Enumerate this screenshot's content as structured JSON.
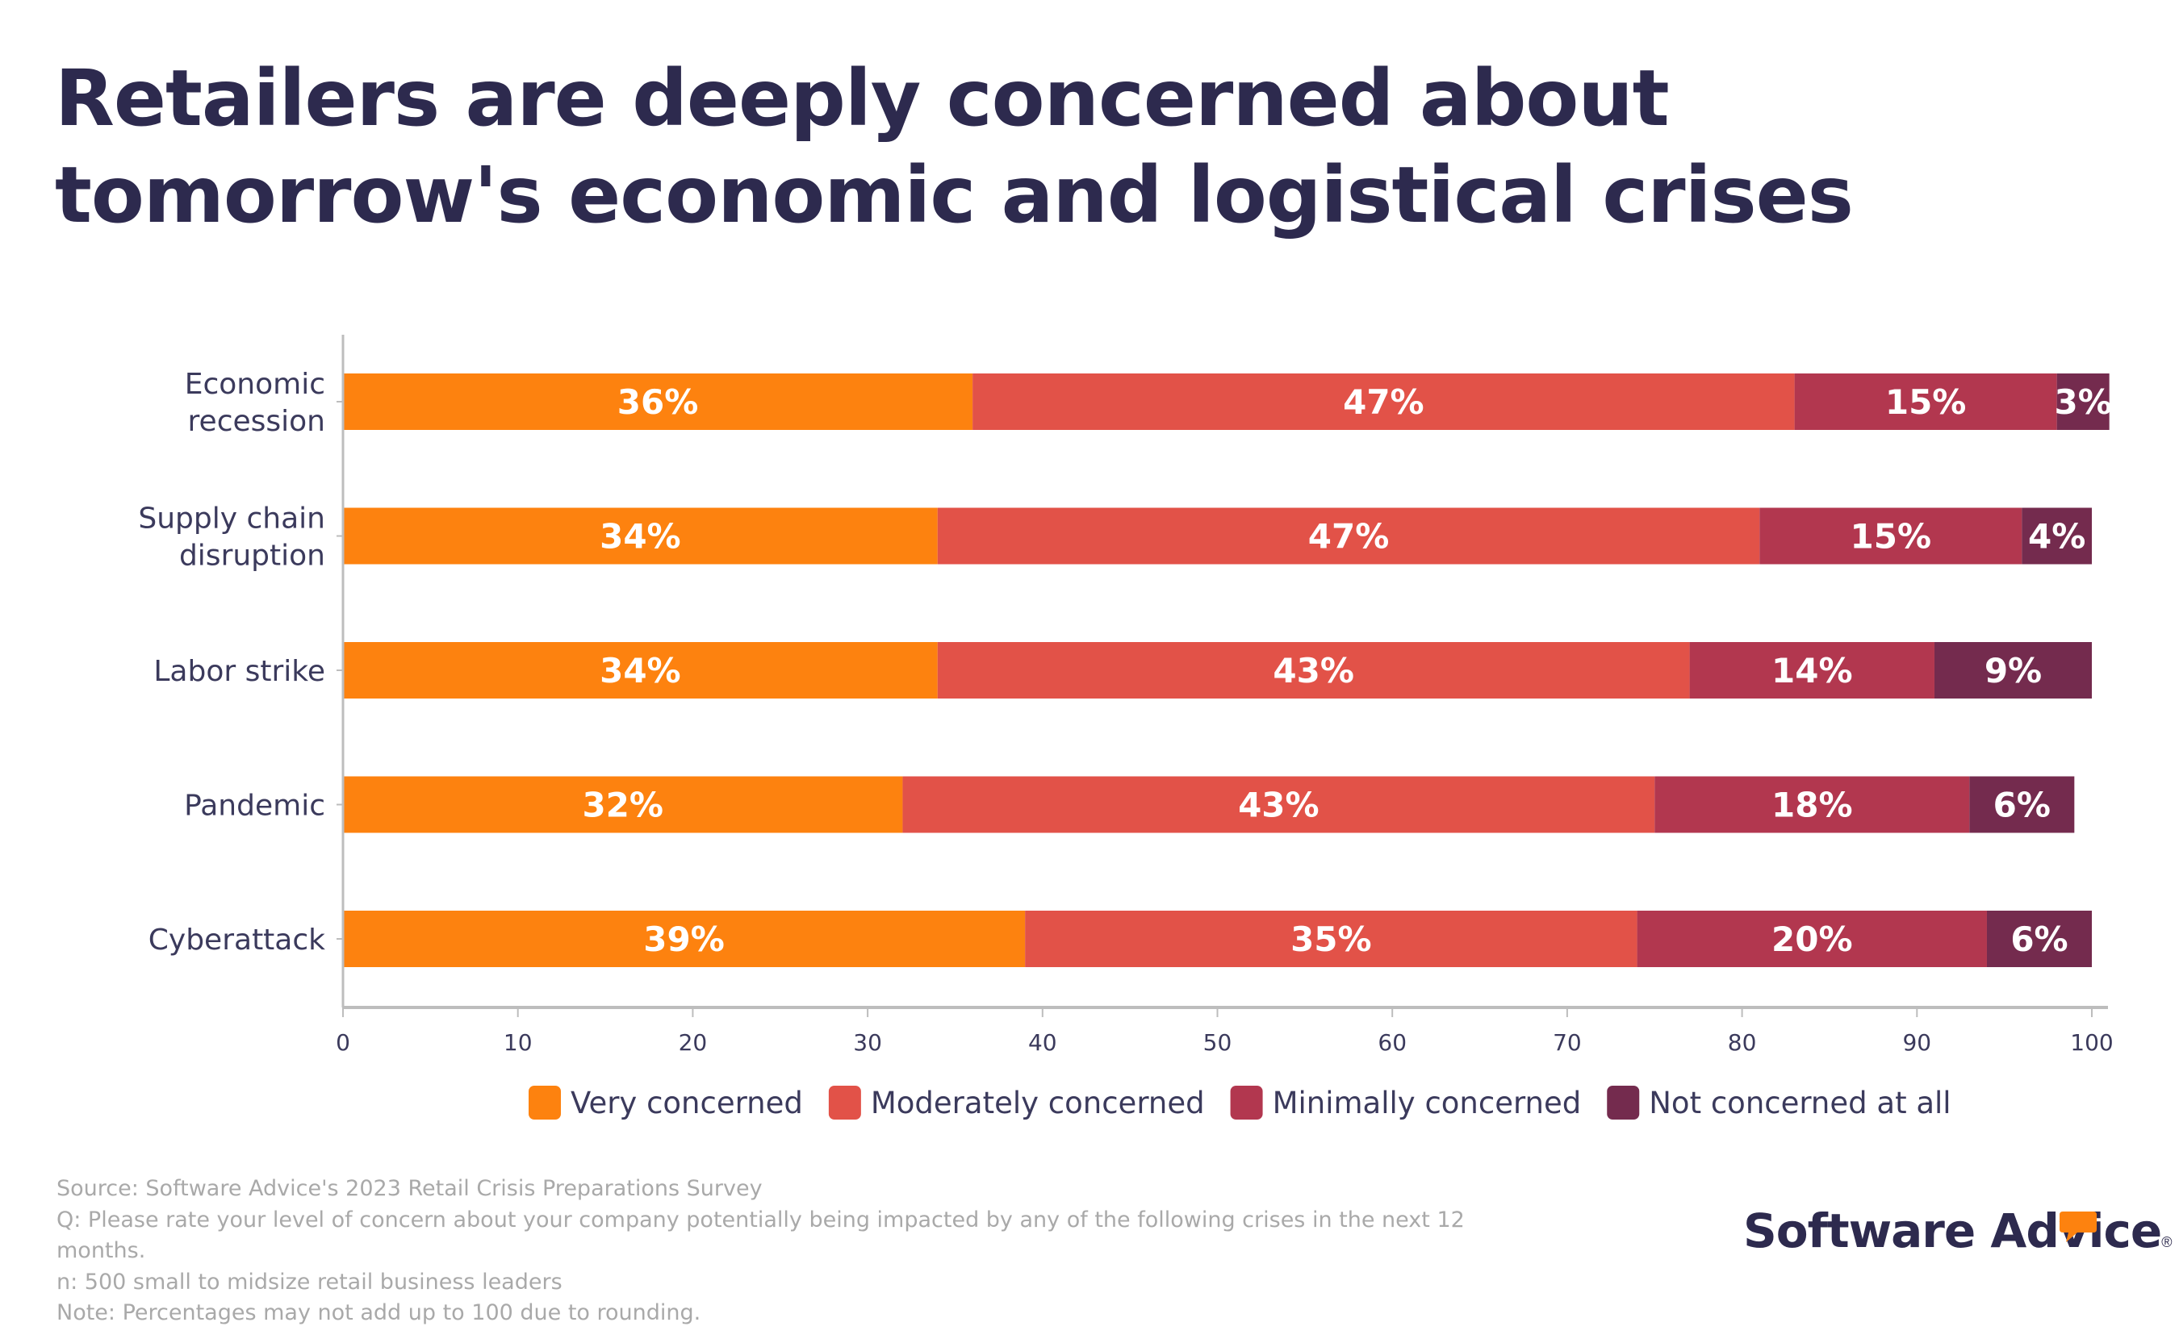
{
  "title": {
    "line1": "Retailers are deeply concerned about",
    "line2": "tomorrow's economic and logistical crises"
  },
  "chart_data": {
    "type": "bar",
    "orientation": "horizontal",
    "stacked": true,
    "title": "Retailers are deeply concerned about tomorrow's economic and logistical crises",
    "xlabel": "",
    "ylabel": "",
    "xlim": [
      0,
      100
    ],
    "x_ticks": [
      0,
      10,
      20,
      30,
      40,
      50,
      60,
      70,
      80,
      90,
      100
    ],
    "grid": false,
    "legend_position": "bottom-center",
    "categories": [
      "Economic recession",
      "Supply chain disruption",
      "Labor strike",
      "Pandemic",
      "Cyberattack"
    ],
    "category_lines": [
      [
        "Economic",
        "recession"
      ],
      [
        "Supply chain",
        "disruption"
      ],
      [
        "Labor strike"
      ],
      [
        "Pandemic"
      ],
      [
        "Cyberattack"
      ]
    ],
    "series": [
      {
        "name": "Very concerned",
        "color": "#fd820f",
        "values": [
          36,
          34,
          34,
          32,
          39
        ]
      },
      {
        "name": "Moderately concerned",
        "color": "#e25248",
        "values": [
          47,
          47,
          43,
          43,
          35
        ]
      },
      {
        "name": "Minimally concerned",
        "color": "#b2374f",
        "values": [
          15,
          15,
          14,
          18,
          20
        ]
      },
      {
        "name": "Not concerned at all",
        "color": "#742b4e",
        "values": [
          3,
          4,
          9,
          6,
          6
        ]
      }
    ],
    "value_label_suffix": "%"
  },
  "footer": {
    "source": "Source: Software Advice's 2023 Retail Crisis Preparations Survey",
    "question": "Q: Please rate your level of concern about your company potentially being impacted by any of the following crises in the next 12 months.",
    "n": "n: 500 small to midsize retail business leaders",
    "note": "Note: Percentages may not add up to 100 due to rounding."
  },
  "logo": {
    "text": "Software Advice",
    "registered": "®",
    "bubble_color": "#fd820f"
  },
  "colors": {
    "title_text": "#2d2a4e",
    "axis": "#bdbdbd",
    "label_text": "#3b3a5c",
    "footer_text": "#a9a9a9"
  }
}
